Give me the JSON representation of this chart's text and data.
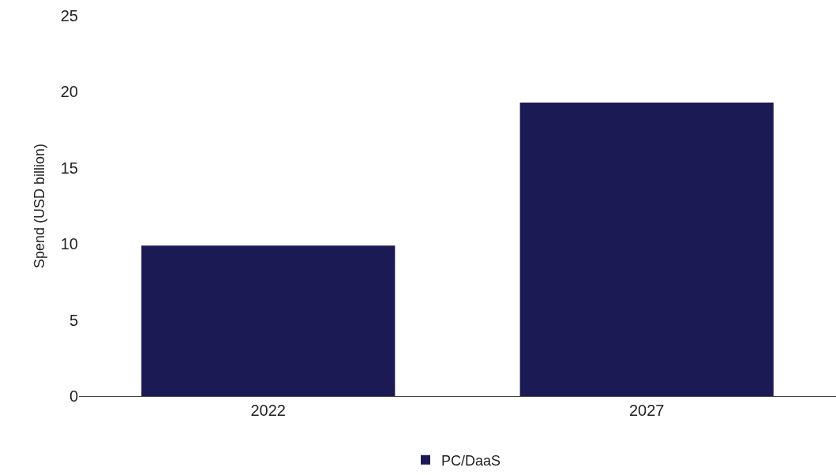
{
  "chart_data": {
    "type": "bar",
    "ylabel": "Spend (USD billion)",
    "categories": [
      "2022",
      "2027"
    ],
    "series": [
      {
        "name": "PC/DaaS",
        "color": "#1b1a55",
        "values": [
          9.9,
          19.3
        ]
      }
    ],
    "ylim": [
      0,
      25
    ],
    "yticks": [
      0,
      5,
      10,
      15,
      20,
      25
    ],
    "grid": false,
    "legend": "bottom"
  }
}
